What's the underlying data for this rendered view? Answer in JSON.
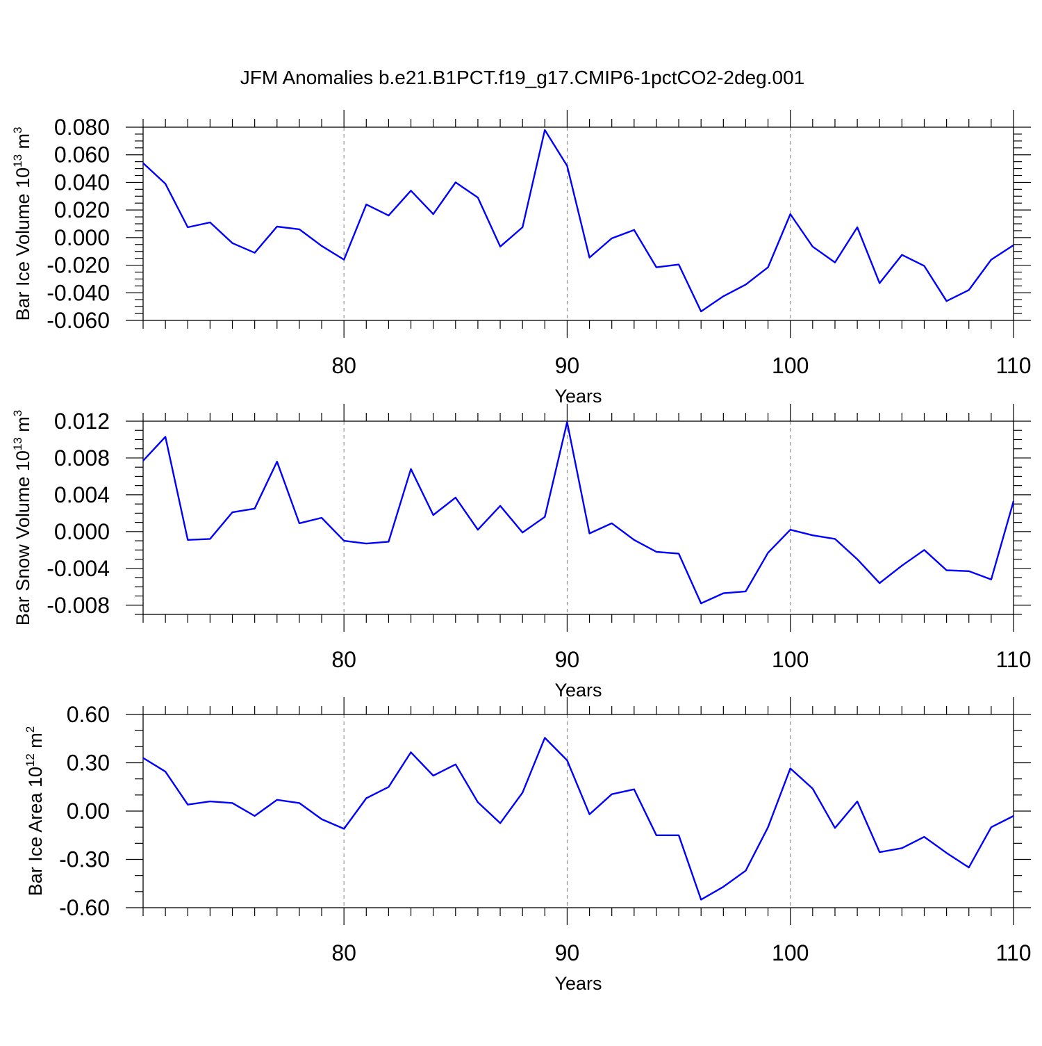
{
  "title": "JFM Anomalies b.e21.B1PCT.f19_g17.CMIP6-1pctCO2-2deg.001",
  "colors": {
    "line": "#0000ff",
    "axis": "#000000",
    "grid": "#7f7f7f"
  },
  "chart_data": [
    {
      "type": "line",
      "title": "JFM Anomalies b.e21.B1PCT.f19_g17.CMIP6-1pctCO2-2deg.001",
      "xlabel": "Years",
      "ylabel": {
        "prefix": "Bar Ice Volume 10",
        "exponent": "13",
        "unit_space": " m",
        "unit_exponent": "3"
      },
      "xlim": [
        71,
        110
      ],
      "ylim": [
        -0.06,
        0.08
      ],
      "xticks": [
        80,
        90,
        100,
        110
      ],
      "xtick_labels": [
        "80",
        "90",
        "100",
        "110"
      ],
      "yticks": [
        -0.06,
        -0.04,
        -0.02,
        0.0,
        0.02,
        0.04,
        0.06,
        0.08
      ],
      "ytick_labels": [
        "-0.060",
        "-0.040",
        "-0.020",
        "0.000",
        "0.020",
        "0.040",
        "0.060",
        "0.080"
      ],
      "yminor_step": 0.005,
      "grid_x": [
        80,
        90,
        100
      ],
      "series": [
        {
          "name": "Bar Ice Volume",
          "x": [
            71,
            72,
            73,
            74,
            75,
            76,
            77,
            78,
            79,
            80,
            81,
            82,
            83,
            84,
            85,
            86,
            87,
            88,
            89,
            90,
            91,
            92,
            93,
            94,
            95,
            96,
            97,
            98,
            99,
            100,
            101,
            102,
            103,
            104,
            105,
            106,
            107,
            108,
            109,
            110
          ],
          "values": [
            0.054,
            0.039,
            0.0075,
            0.011,
            -0.004,
            -0.011,
            0.008,
            0.006,
            -0.006,
            -0.016,
            0.024,
            0.016,
            0.034,
            0.017,
            0.04,
            0.029,
            -0.0065,
            0.0075,
            0.078,
            0.052,
            -0.0145,
            -0.0005,
            0.0055,
            -0.0215,
            -0.0195,
            -0.0535,
            -0.0425,
            -0.034,
            -0.0215,
            0.017,
            -0.0065,
            -0.018,
            0.0075,
            -0.033,
            -0.0125,
            -0.0205,
            -0.046,
            -0.038,
            -0.016,
            -0.0055
          ]
        }
      ]
    },
    {
      "type": "line",
      "xlabel": "Years",
      "ylabel": {
        "prefix": "Bar Snow Volume 10",
        "exponent": "13",
        "unit_space": " m",
        "unit_exponent": "3"
      },
      "xlim": [
        71,
        110
      ],
      "ylim": [
        -0.009,
        0.012
      ],
      "xticks": [
        80,
        90,
        100,
        110
      ],
      "xtick_labels": [
        "80",
        "90",
        "100",
        "110"
      ],
      "yticks": [
        -0.008,
        -0.004,
        0.0,
        0.004,
        0.008,
        0.012
      ],
      "ytick_labels": [
        "-0.008",
        "-0.004",
        "0.000",
        "0.004",
        "0.008",
        "0.012"
      ],
      "yminor_step": 0.001,
      "grid_x": [
        80,
        90,
        100
      ],
      "series": [
        {
          "name": "Bar Snow Volume",
          "x": [
            71,
            72,
            73,
            74,
            75,
            76,
            77,
            78,
            79,
            80,
            81,
            82,
            83,
            84,
            85,
            86,
            87,
            88,
            89,
            90,
            91,
            92,
            93,
            94,
            95,
            96,
            97,
            98,
            99,
            100,
            101,
            102,
            103,
            104,
            105,
            106,
            107,
            108,
            109,
            110
          ],
          "values": [
            0.0077,
            0.0103,
            -0.0009,
            -0.0008,
            0.0021,
            0.0025,
            0.0076,
            0.0009,
            0.0015,
            -0.001,
            -0.0013,
            -0.0011,
            0.0068,
            0.0018,
            0.0037,
            0.0002,
            0.0028,
            -0.0001,
            0.0016,
            0.0119,
            -0.0002,
            0.0009,
            -0.0009,
            -0.0022,
            -0.0024,
            -0.0078,
            -0.0067,
            -0.0065,
            -0.0023,
            0.0002,
            -0.0004,
            -0.0008,
            -0.003,
            -0.0056,
            -0.0037,
            -0.002,
            -0.0042,
            -0.0043,
            -0.0052,
            0.0033
          ]
        }
      ]
    },
    {
      "type": "line",
      "xlabel": "Years",
      "ylabel": {
        "prefix": "Bar Ice Area 10",
        "exponent": "12",
        "unit_space": " m",
        "unit_exponent": "2"
      },
      "xlim": [
        71,
        110
      ],
      "ylim": [
        -0.6,
        0.6
      ],
      "xticks": [
        80,
        90,
        100,
        110
      ],
      "xtick_labels": [
        "80",
        "90",
        "100",
        "110"
      ],
      "yticks": [
        -0.6,
        -0.3,
        0.0,
        0.3,
        0.6
      ],
      "ytick_labels": [
        "-0.60",
        "-0.30",
        "0.00",
        "0.30",
        "0.60"
      ],
      "yminor_step": 0.1,
      "grid_x": [
        80,
        90,
        100
      ],
      "series": [
        {
          "name": "Bar Ice Area",
          "x": [
            71,
            72,
            73,
            74,
            75,
            76,
            77,
            78,
            79,
            80,
            81,
            82,
            83,
            84,
            85,
            86,
            87,
            88,
            89,
            90,
            91,
            92,
            93,
            94,
            95,
            96,
            97,
            98,
            99,
            100,
            101,
            102,
            103,
            104,
            105,
            106,
            107,
            108,
            109,
            110
          ],
          "values": [
            0.33,
            0.245,
            0.04,
            0.06,
            0.05,
            -0.03,
            0.07,
            0.05,
            -0.05,
            -0.11,
            0.08,
            0.15,
            0.365,
            0.22,
            0.29,
            0.055,
            -0.075,
            0.115,
            0.455,
            0.315,
            -0.02,
            0.105,
            0.135,
            -0.15,
            -0.15,
            -0.55,
            -0.47,
            -0.37,
            -0.1,
            0.265,
            0.14,
            -0.105,
            0.06,
            -0.255,
            -0.23,
            -0.16,
            -0.26,
            -0.35,
            -0.1,
            -0.03
          ]
        }
      ]
    }
  ]
}
